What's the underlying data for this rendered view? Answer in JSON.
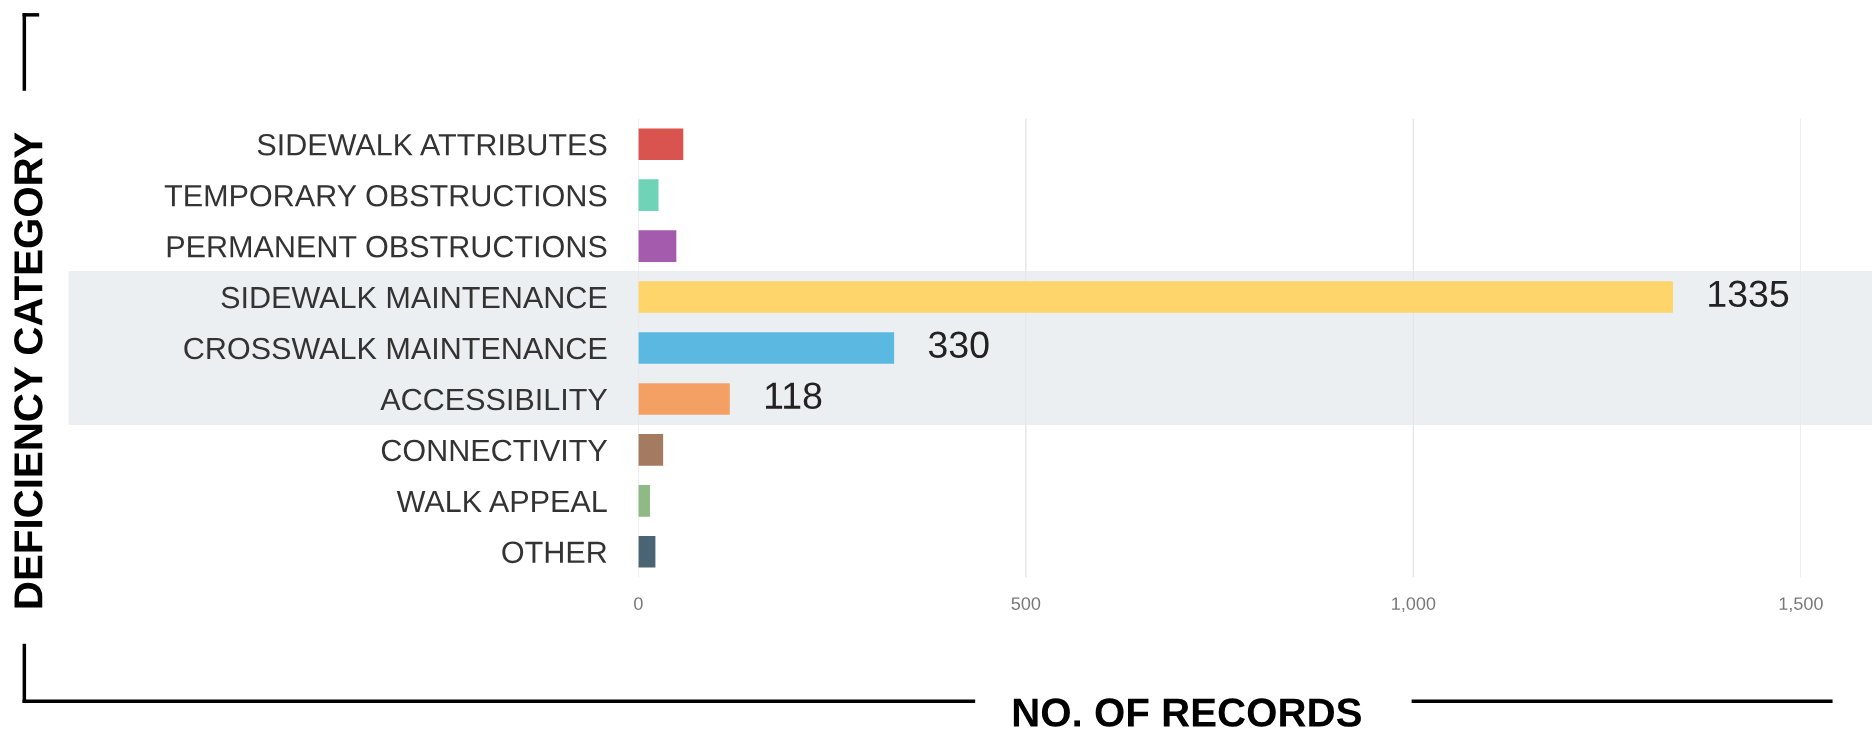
{
  "chart_data": {
    "type": "bar",
    "orientation": "horizontal",
    "xlabel": "NO. OF RECORDS",
    "ylabel": "DEFICIENCY CATEGORY",
    "categories": [
      "SIDEWALK ATTRIBUTES",
      "TEMPORARY OBSTRUCTIONS",
      "PERMANENT OBSTRUCTIONS",
      "SIDEWALK MAINTENANCE",
      "CROSSWALK MAINTENANCE",
      "ACCESSIBILITY",
      "CONNECTIVITY",
      "WALK APPEAL",
      "OTHER"
    ],
    "values": [
      58,
      26,
      49,
      1335,
      330,
      118,
      32,
      15,
      22
    ],
    "colors": [
      "#d9544f",
      "#6fd3b8",
      "#a45aad",
      "#fdd56a",
      "#5bb8e0",
      "#f4a064",
      "#a47a60",
      "#8dba85",
      "#4a6474"
    ],
    "value_labels": [
      null,
      null,
      null,
      "1335",
      "330",
      "118",
      null,
      null,
      null
    ],
    "xlim": [
      0,
      1500
    ],
    "xticks": [
      0,
      500,
      {
        "value": 1000,
        "label": "1,000"
      },
      {
        "value": 1500,
        "label": "1,500"
      }
    ],
    "grid": "x",
    "bands": [
      {
        "axis": "y",
        "from": "SIDEWALK MAINTENANCE",
        "to": "ACCESSIBILITY",
        "color": "#eceff1"
      }
    ]
  }
}
